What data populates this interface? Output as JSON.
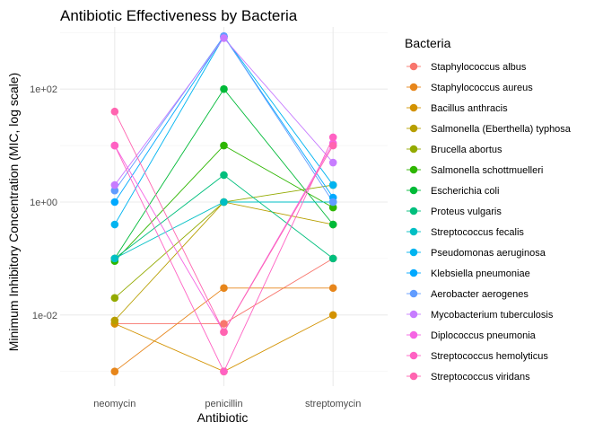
{
  "chart_data": {
    "type": "line",
    "title": "Antibiotic Effectiveness by Bacteria",
    "xlabel": "Antibiotic",
    "ylabel": "Minimum Inhibitory Concentration (MIC, log scale)",
    "y_scale": "log10",
    "ylim": [
      0.00055,
      1260
    ],
    "y_ticks": [
      {
        "value": 0.01,
        "label": "1e-02"
      },
      {
        "value": 1,
        "label": "1e+00"
      },
      {
        "value": 100,
        "label": "1e+02"
      }
    ],
    "grid": true,
    "legend_position": "right",
    "legend_title": "Bacteria",
    "categories": [
      "neomycin",
      "penicillin",
      "streptomycin"
    ],
    "series": [
      {
        "name": "Staphylococcus albus",
        "color": "#F8766D",
        "values": [
          0.007,
          0.007,
          0.1
        ]
      },
      {
        "name": "Staphylococcus aureus",
        "color": "#E7861B",
        "values": [
          0.001,
          0.03,
          0.03
        ]
      },
      {
        "name": "Bacillus anthracis",
        "color": "#D39200",
        "values": [
          0.007,
          0.001,
          0.01
        ]
      },
      {
        "name": "Salmonella (Eberthella) typhosa",
        "color": "#B79F00",
        "values": [
          0.008,
          1,
          0.4
        ]
      },
      {
        "name": "Brucella abortus",
        "color": "#93AA00",
        "values": [
          0.02,
          1,
          2
        ]
      },
      {
        "name": "Salmonella schottmuelleri",
        "color": "#2DB600",
        "values": [
          0.09,
          10,
          0.8
        ]
      },
      {
        "name": "Escherichia coli",
        "color": "#00BA38",
        "values": [
          0.1,
          100,
          0.4
        ]
      },
      {
        "name": "Proteus vulgaris",
        "color": "#00BF7D",
        "values": [
          0.1,
          3,
          0.1
        ]
      },
      {
        "name": "Streptococcus fecalis",
        "color": "#00BFC4",
        "values": [
          0.1,
          1,
          1
        ]
      },
      {
        "name": "Pseudomonas aeruginosa",
        "color": "#00B4F0",
        "values": [
          0.4,
          850,
          2
        ]
      },
      {
        "name": "Klebsiella pneumoniae",
        "color": "#00A9FF",
        "values": [
          1,
          850,
          1.2
        ]
      },
      {
        "name": "Aerobacter aerogenes",
        "color": "#619CFF",
        "values": [
          1.6,
          870,
          1
        ]
      },
      {
        "name": "Mycobacterium tuberculosis",
        "color": "#C77CFF",
        "values": [
          2,
          800,
          5
        ]
      },
      {
        "name": "Diplococcus pneumonia",
        "color": "#F564E3",
        "values": [
          10,
          0.005,
          11
        ]
      },
      {
        "name": "Streptococcus hemolyticus",
        "color": "#FF61C3",
        "values": [
          10,
          0.001,
          14
        ]
      },
      {
        "name": "Streptococcus viridans",
        "color": "#FF64B0",
        "values": [
          40,
          0.005,
          10
        ]
      }
    ]
  }
}
